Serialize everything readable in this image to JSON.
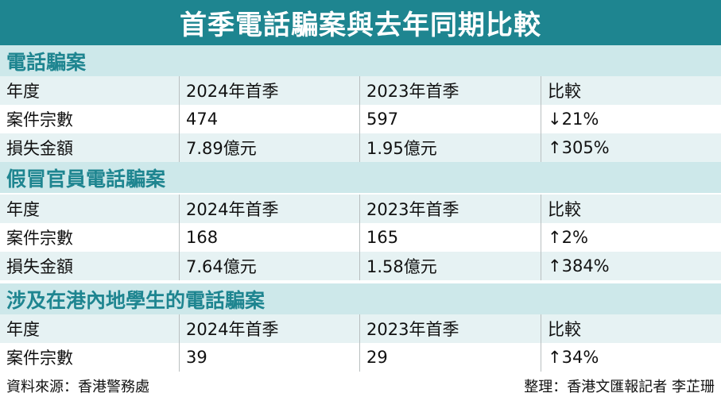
{
  "title": "首季電話騙案與去年同期比較",
  "sections": [
    {
      "heading": "電話騙案",
      "rows": [
        [
          "年度",
          "2024年首季",
          "2023年首季",
          "比較"
        ],
        [
          "案件宗數",
          "474",
          "597",
          "↓21%"
        ],
        [
          "損失金額",
          "7.89億元",
          "1.95億元",
          "↑305%"
        ]
      ]
    },
    {
      "heading": "假冒官員電話騙案",
      "rows": [
        [
          "年度",
          "2024年首季",
          "2023年首季",
          "比較"
        ],
        [
          "案件宗數",
          "168",
          "165",
          "↑2%"
        ],
        [
          "損失金額",
          "7.64億元",
          "1.58億元",
          "↑384%"
        ]
      ]
    },
    {
      "heading": "涉及在港內地學生的電話騙案",
      "rows": [
        [
          "年度",
          "2024年首季",
          "2023年首季",
          "比較"
        ],
        [
          "案件宗數",
          "39",
          "29",
          "↑34%"
        ]
      ]
    }
  ],
  "footer": {
    "source": "資料來源：香港警務處",
    "credit": "整理：香港文匯報記者 李芷珊"
  },
  "colors": {
    "title_bg": "#1e8590",
    "section_bg": "#cde8ea",
    "section_text": "#1e8590",
    "row_shade": "#e6f2f3"
  }
}
